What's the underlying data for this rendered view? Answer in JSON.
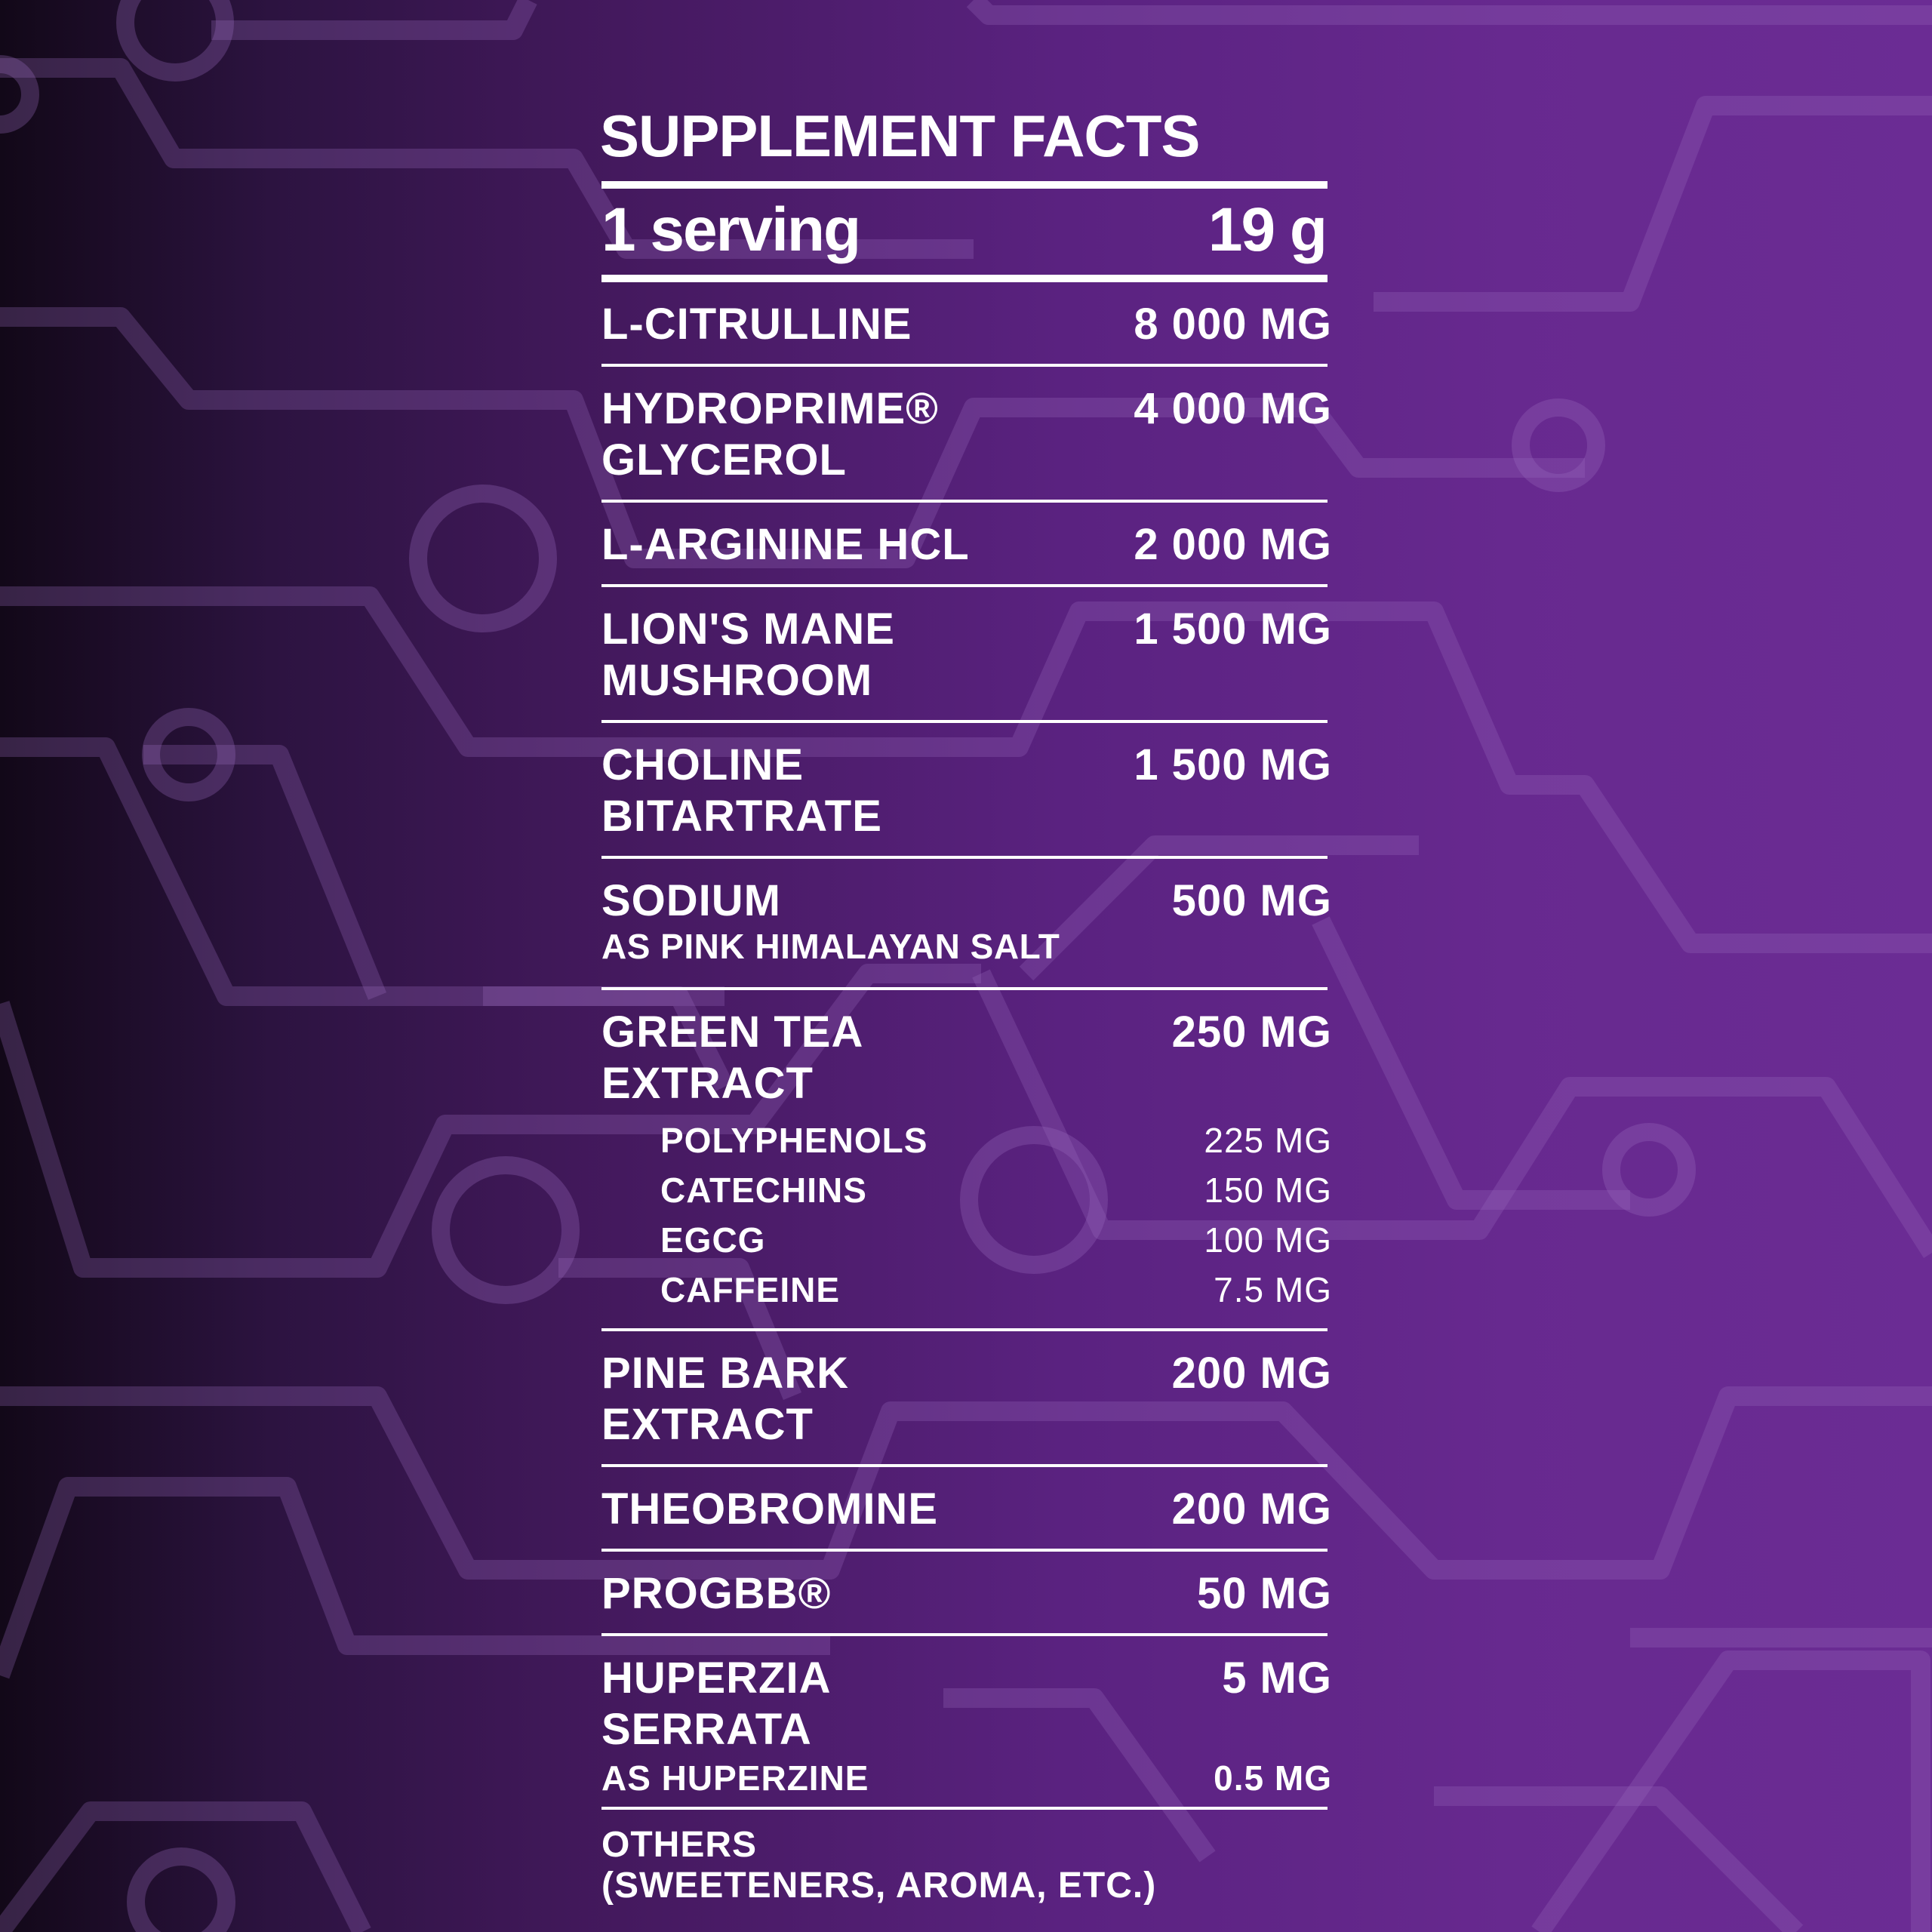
{
  "title": "SUPPLEMENT FACTS",
  "serving": {
    "label": "1 serving",
    "size": "19 g"
  },
  "ingredients": [
    {
      "name": "L-CITRULLINE",
      "amount": "8 000 MG"
    },
    {
      "name": "HYDROPRIME®",
      "name2": "GLYCEROL",
      "amount": "4 000 MG"
    },
    {
      "name": "L-ARGININE HCL",
      "amount": "2 000 MG"
    },
    {
      "name": "LION'S MANE",
      "name2": "MUSHROOM",
      "amount": "1 500 MG"
    },
    {
      "name": "CHOLINE",
      "name2": "BITARTRATE",
      "amount": "1 500 MG"
    },
    {
      "name": "SODIUM",
      "note": "AS PINK HIMALAYAN SALT",
      "amount": "500 MG"
    },
    {
      "name": "GREEN TEA",
      "name2": "EXTRACT",
      "amount": "250 MG",
      "components": [
        {
          "name": "POLYPHENOLS",
          "amount": "225 MG"
        },
        {
          "name": "CATECHINS",
          "amount": "150 MG"
        },
        {
          "name": "EGCG",
          "amount": "100 MG"
        },
        {
          "name": "CAFFEINE",
          "amount": "7.5 MG"
        }
      ]
    },
    {
      "name": "PINE BARK",
      "name2": "EXTRACT",
      "amount": "200 MG"
    },
    {
      "name": "THEOBROMINE",
      "amount": "200 MG"
    },
    {
      "name": "PROGBB®",
      "amount": "50 MG"
    },
    {
      "name": "HUPERZIA",
      "name2": "SERRATA",
      "note": "AS HUPERZINE",
      "amount": "5 MG",
      "note_amount": "0.5 MG"
    }
  ],
  "others": {
    "line1": "OTHERS",
    "line2": "(SWEETENERS, AROMA, ETC.)"
  },
  "colors": {
    "text": "#ffffff",
    "bg_dark": "#120818",
    "bg_light": "#6b2c94",
    "circuit": "#8a55b0"
  }
}
